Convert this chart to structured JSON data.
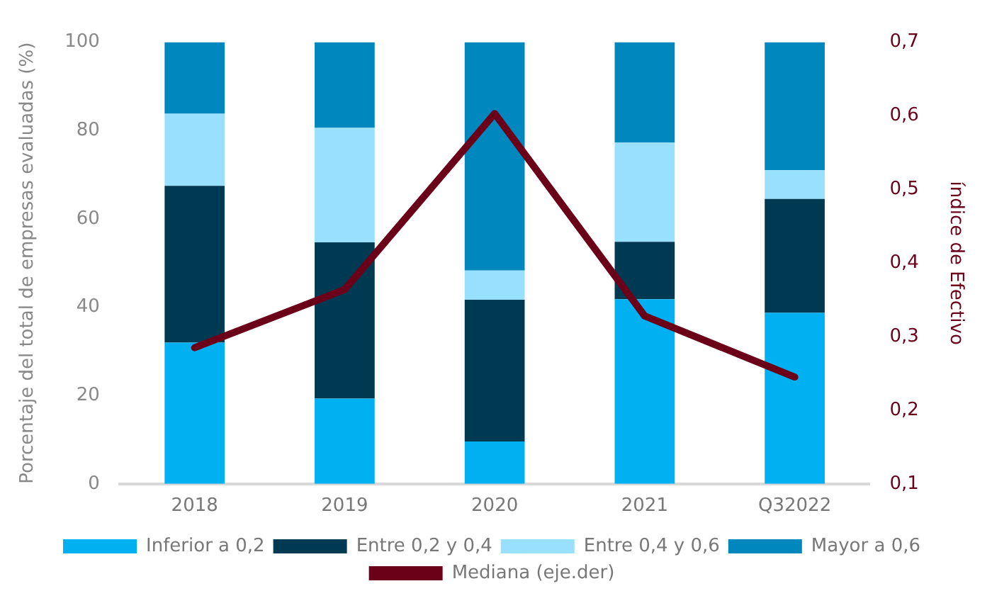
{
  "chart_data": {
    "type": "bar",
    "stacked": true,
    "categories": [
      "2018",
      "2019",
      "2020",
      "2021",
      "Q32022"
    ],
    "ylabel": "Porcentaje del total de empresas evaluadas (%)",
    "y2label": "índice de Efectivo",
    "ylim": [
      0,
      100
    ],
    "yticks": [
      0,
      20,
      40,
      60,
      80,
      100
    ],
    "y2lim": [
      0.1,
      0.7
    ],
    "y2ticks": [
      {
        "value": 0.1,
        "label": "0,1"
      },
      {
        "value": 0.2,
        "label": "0,2"
      },
      {
        "value": 0.3,
        "label": "0,3"
      },
      {
        "value": 0.4,
        "label": "0,4"
      },
      {
        "value": 0.5,
        "label": "0,5"
      },
      {
        "value": 0.6,
        "label": "0,6"
      },
      {
        "value": 0.7,
        "label": "0,7"
      }
    ],
    "grid": false,
    "legend": "bottom",
    "series": [
      {
        "name": "Inferior a 0,2",
        "color": "#00b0f0",
        "values": [
          32,
          19.3,
          9.6,
          41.8,
          38.7
        ]
      },
      {
        "name": "Entre 0,2 y 0,4",
        "color": "#003a52",
        "values": [
          35.5,
          35.4,
          32.1,
          13,
          25.8
        ]
      },
      {
        "name": "Entre 0,4 y 0,6",
        "color": "#99e0ff",
        "values": [
          16.3,
          25.9,
          6.6,
          22.5,
          6.5
        ]
      },
      {
        "name": "Mayor a 0,6",
        "color": "#0087bd",
        "values": [
          16.2,
          19.4,
          51.7,
          22.7,
          29
        ]
      },
      {
        "name": "Mediana (eje.der)",
        "color": "#6b0019",
        "type": "line",
        "axis": "y2",
        "marker": "none",
        "values": [
          0.285,
          0.364,
          0.603,
          0.328,
          0.245
        ]
      }
    ]
  }
}
